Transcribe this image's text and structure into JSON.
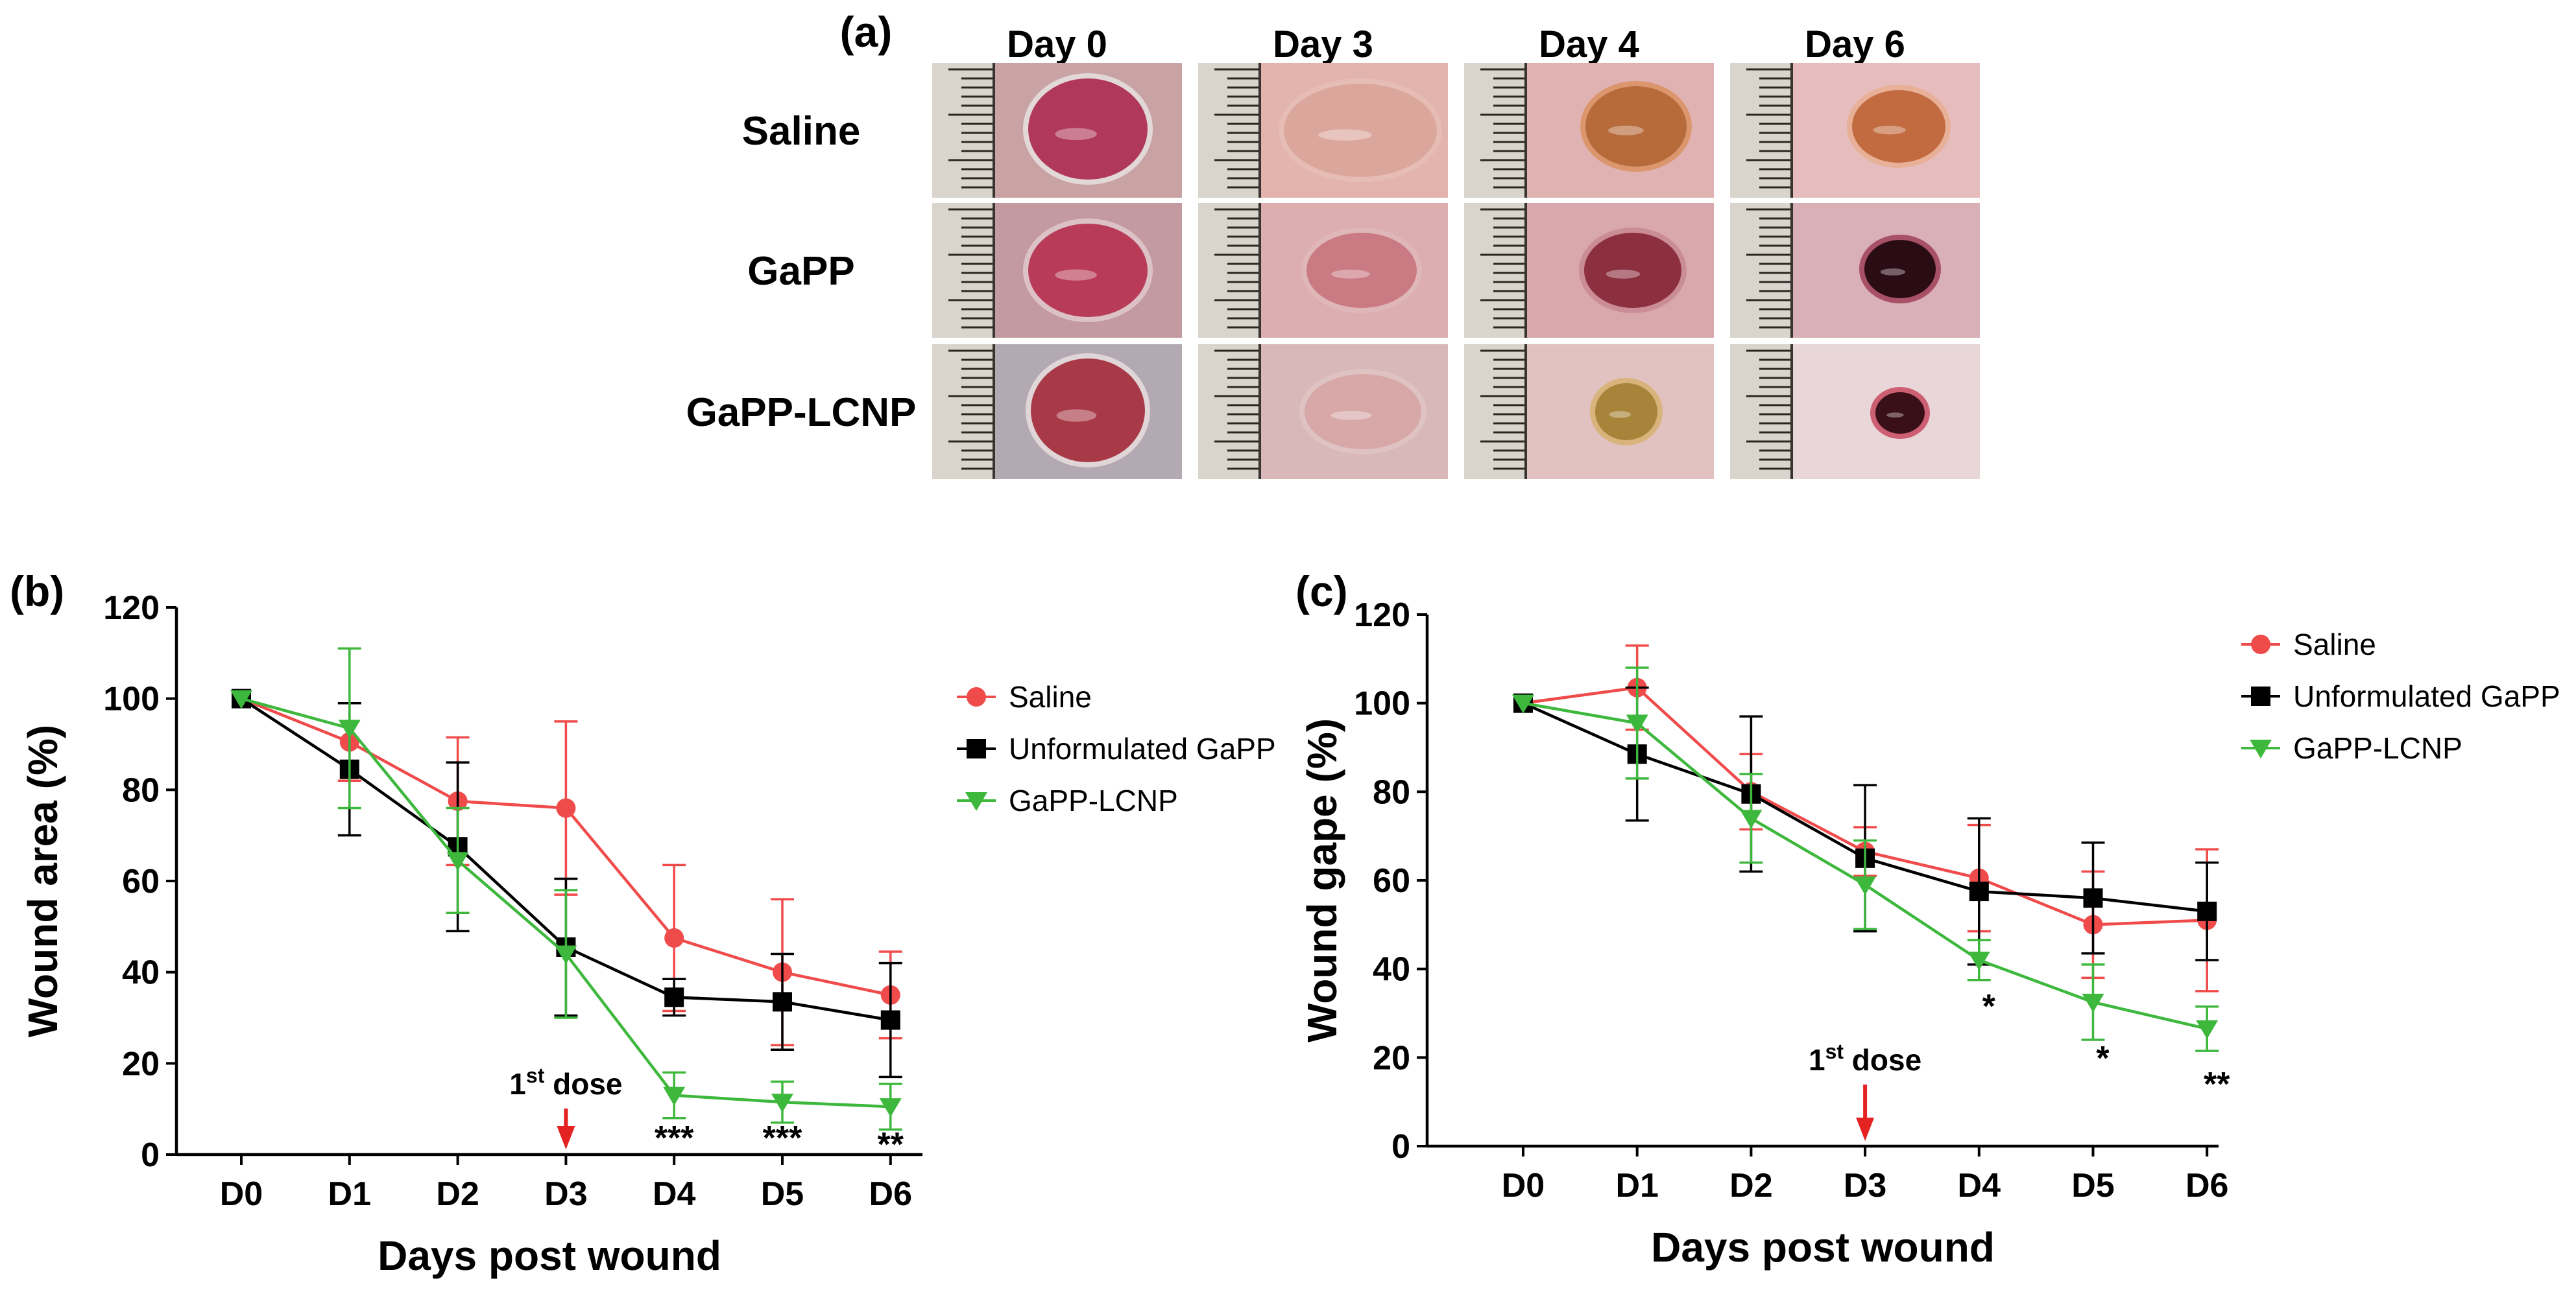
{
  "figure": {
    "panel_a": {
      "letter": "(a)",
      "days": [
        "Day 0",
        "Day 3",
        "Day 4",
        "Day 6"
      ],
      "groups": [
        "Saline",
        "GaPP",
        "GaPP-LCNP"
      ],
      "wounds": [
        [
          {
            "skin": "#c9a2a4",
            "wound": "#b0385a",
            "rim": "#e8e2e2"
          },
          {
            "skin": "#e3b4ab",
            "wound": "#dba79c",
            "rim": "#e6beb5"
          },
          {
            "skin": "#e0b2b2",
            "wound": "#b76a3a",
            "rim": "#d99060"
          },
          {
            "skin": "#e6bcbc",
            "wound": "#c26a40",
            "rim": "#e6ae90"
          }
        ],
        [
          {
            "skin": "#c39aa0",
            "wound": "#b83c58",
            "rim": "#e0c8cc"
          },
          {
            "skin": "#dcaeb0",
            "wound": "#c97a82",
            "rim": "#e0b8ba"
          },
          {
            "skin": "#d8a8ac",
            "wound": "#8c3040",
            "rim": "#c98890"
          },
          {
            "skin": "#d8b0b6",
            "wound": "#2a0c14",
            "rim": "#a04058"
          }
        ],
        [
          {
            "skin": "#b3a9b3",
            "wound": "#a83a48",
            "rim": "#e8dede"
          },
          {
            "skin": "#d8b8b8",
            "wound": "#d8a8a8",
            "rim": "#e0c4c4"
          },
          {
            "skin": "#e2c2c0",
            "wound": "#a8843a",
            "rim": "#d6b070"
          },
          {
            "skin": "#e8d6d8",
            "wound": "#3a1018",
            "rim": "#c84a60"
          }
        ]
      ]
    },
    "colors": {
      "saline": "#f04b4b",
      "unformulated": "#000000",
      "lcnp": "#3db83d",
      "arrow": "#e52222"
    }
  },
  "chart_data": [
    {
      "panel": "(b)",
      "type": "line",
      "x": [
        "D0",
        "D1",
        "D2",
        "D3",
        "D4",
        "D5",
        "D6"
      ],
      "xlabel": "Days post wound",
      "ylabel": "Wound area (%)",
      "ylim": [
        0,
        120
      ],
      "yticks": [
        "0",
        "20",
        "40",
        "60",
        "80",
        "100",
        "120"
      ],
      "legend_position": "right",
      "series": [
        {
          "name": "Saline",
          "marker": "circle",
          "color": "#f04b4b",
          "values": [
            100,
            90.5,
            77.5,
            76,
            47.5,
            40,
            35
          ],
          "errors": [
            0,
            8.5,
            14,
            19,
            16,
            16,
            9.5
          ]
        },
        {
          "name": "Unformulated GaPP",
          "marker": "square",
          "color": "#000000",
          "values": [
            100,
            84.5,
            67.5,
            45.5,
            34.5,
            33.5,
            29.5
          ],
          "errors": [
            0,
            14.5,
            18.5,
            15,
            4,
            10.5,
            12.5
          ]
        },
        {
          "name": "GaPP-LCNP",
          "marker": "triangle-down",
          "color": "#3db83d",
          "values": [
            100,
            93.5,
            64.5,
            44,
            13,
            11.5,
            10.5
          ],
          "errors": [
            0,
            17.5,
            11.5,
            14,
            5,
            4.5,
            5
          ]
        }
      ],
      "annotations": {
        "dose": {
          "text": "1",
          "sup": "st",
          "rest": " dose",
          "x": "D3"
        },
        "significance": [
          {
            "x": "D4",
            "text": "***"
          },
          {
            "x": "D5",
            "text": "***"
          },
          {
            "x": "D6",
            "text": "**"
          }
        ]
      }
    },
    {
      "panel": "(c)",
      "type": "line",
      "x": [
        "D0",
        "D1",
        "D2",
        "D3",
        "D4",
        "D5",
        "D6"
      ],
      "xlabel": "Days post wound",
      "ylabel": "Wound gape (%)",
      "ylim": [
        0,
        120
      ],
      "yticks": [
        "0",
        "20",
        "40",
        "60",
        "80",
        "100",
        "120"
      ],
      "legend_position": "top-right",
      "series": [
        {
          "name": "Saline",
          "marker": "circle",
          "color": "#f04b4b",
          "values": [
            100,
            103.5,
            80,
            66.5,
            60.5,
            50,
            51
          ],
          "errors": [
            0,
            9.5,
            8.5,
            5.5,
            12,
            12,
            16
          ]
        },
        {
          "name": "Unformulated GaPP",
          "marker": "square",
          "color": "#000000",
          "values": [
            100,
            88.5,
            79.5,
            65,
            57.5,
            56,
            53
          ],
          "errors": [
            0,
            15,
            17.5,
            16.5,
            16.5,
            12.5,
            11
          ]
        },
        {
          "name": "GaPP-LCNP",
          "marker": "triangle-down",
          "color": "#3db83d",
          "values": [
            100,
            95.5,
            74,
            59,
            42,
            32.5,
            26.5
          ],
          "errors": [
            0,
            12.5,
            10,
            10,
            4.5,
            8.5,
            5
          ]
        }
      ],
      "annotations": {
        "dose": {
          "text": "1",
          "sup": "st",
          "rest": " dose",
          "x": "D3"
        },
        "significance": [
          {
            "x": "D4",
            "text": "*"
          },
          {
            "x": "D5",
            "text": "*"
          },
          {
            "x": "D6",
            "text": "**"
          }
        ]
      }
    }
  ]
}
